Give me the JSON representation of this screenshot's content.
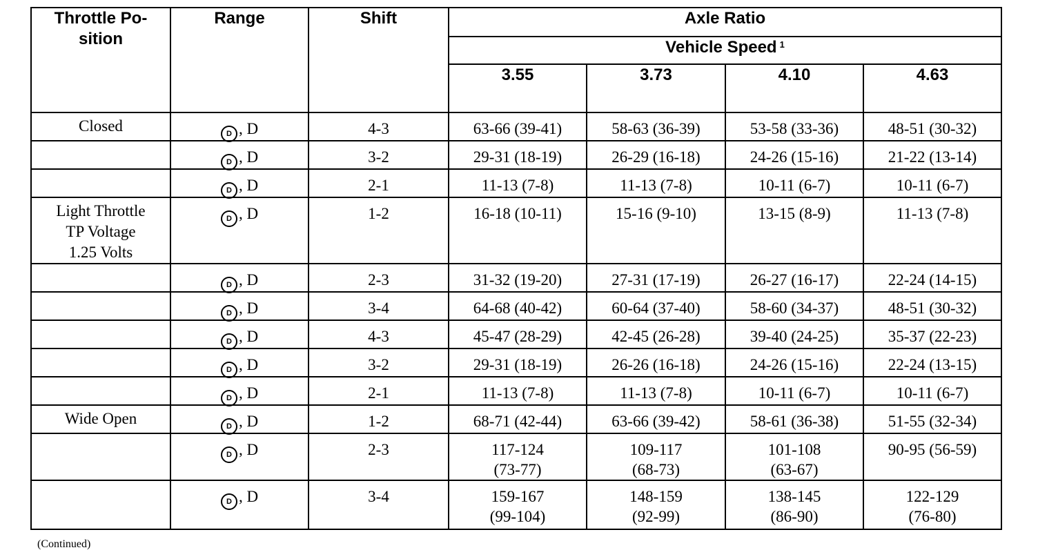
{
  "header": {
    "throttle_position": "Throttle Po-\nsition",
    "range": "Range",
    "shift": "Shift",
    "axle_ratio": "Axle Ratio",
    "vehicle_speed": "Vehicle Speed",
    "vehicle_speed_note": "1",
    "ratios": [
      "3.55",
      "3.73",
      "4.10",
      "4.63"
    ]
  },
  "range_symbol": "D",
  "range_suffix": ", D",
  "rows": [
    {
      "throttle": "Closed",
      "shift": "4-3",
      "speeds": [
        "63-66 (39-41)",
        "58-63 (36-39)",
        "53-58 (33-36)",
        "48-51 (30-32)"
      ]
    },
    {
      "throttle": "",
      "shift": "3-2",
      "speeds": [
        "29-31 (18-19)",
        "26-29 (16-18)",
        "24-26 (15-16)",
        "21-22 (13-14)"
      ]
    },
    {
      "throttle": "",
      "shift": "2-1",
      "speeds": [
        "11-13 (7-8)",
        "11-13 (7-8)",
        "10-11 (6-7)",
        "10-11 (6-7)"
      ]
    },
    {
      "throttle": "Light Throttle\nTP Voltage\n1.25 Volts",
      "shift": "1-2",
      "speeds": [
        "16-18 (10-11)",
        "15-16 (9-10)",
        "13-15 (8-9)",
        "11-13 (7-8)"
      ]
    },
    {
      "throttle": "",
      "shift": "2-3",
      "speeds": [
        "31-32 (19-20)",
        "27-31 (17-19)",
        "26-27 (16-17)",
        "22-24 (14-15)"
      ]
    },
    {
      "throttle": "",
      "shift": "3-4",
      "speeds": [
        "64-68 (40-42)",
        "60-64 (37-40)",
        "58-60 (34-37)",
        "48-51 (30-32)"
      ]
    },
    {
      "throttle": "",
      "shift": "4-3",
      "speeds": [
        "45-47 (28-29)",
        "42-45 (26-28)",
        "39-40 (24-25)",
        "35-37 (22-23)"
      ]
    },
    {
      "throttle": "",
      "shift": "3-2",
      "speeds": [
        "29-31 (18-19)",
        "26-26 (16-18)",
        "24-26 (15-16)",
        "22-24 (13-15)"
      ]
    },
    {
      "throttle": "",
      "shift": "2-1",
      "speeds": [
        "11-13 (7-8)",
        "11-13 (7-8)",
        "10-11 (6-7)",
        "10-11 (6-7)"
      ]
    },
    {
      "throttle": "Wide Open",
      "shift": "1-2",
      "speeds": [
        "68-71 (42-44)",
        "63-66 (39-42)",
        "58-61 (36-38)",
        "51-55 (32-34)"
      ]
    },
    {
      "throttle": "",
      "shift": "2-3",
      "speeds": [
        "117-124\n(73-77)",
        "109-117\n(68-73)",
        "101-108\n(63-67)",
        "90-95 (56-59)"
      ]
    },
    {
      "throttle": "",
      "shift": "3-4",
      "speeds": [
        "159-167\n(99-104)",
        "148-159\n(92-99)",
        "138-145\n(86-90)",
        "122-129\n(76-80)"
      ]
    }
  ],
  "footnote": "(Continued)"
}
